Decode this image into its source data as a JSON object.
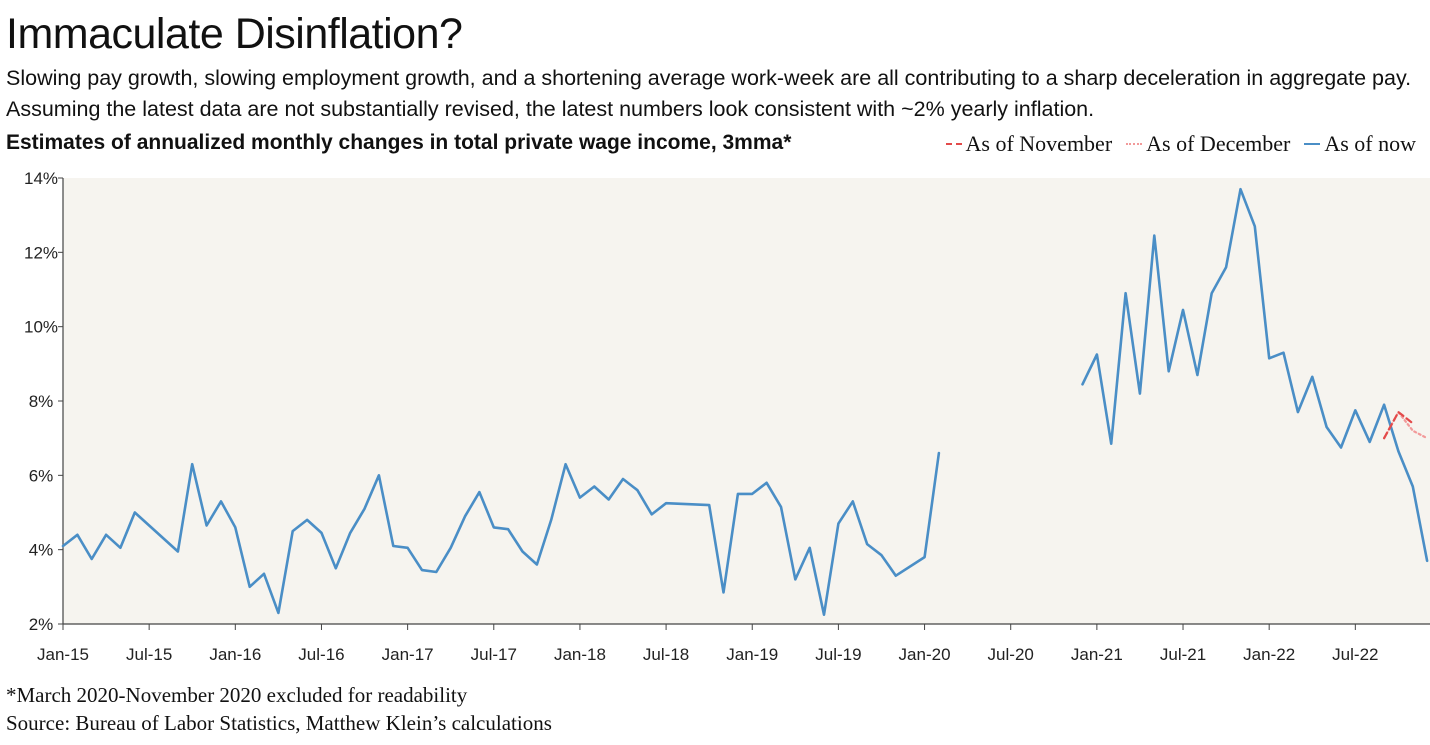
{
  "title": "Immaculate Disinflation?",
  "subtitle": "Slowing pay growth, slowing employment growth, and a shortening average work-week are all contributing to a sharp deceleration in aggregate pay. Assuming the latest data are not substantially revised, the latest numbers look consistent with ~2% yearly inflation.",
  "footnote": "*March 2020-November 2020 excluded for readability",
  "source": "Source: Bureau of Labor Statistics, Matthew Klein’s calculations",
  "chart_data": {
    "type": "line",
    "title": "Estimates of annualized monthly changes in total private wage income, 3mma*",
    "xlabel": "",
    "ylabel": "",
    "ylim": [
      2,
      14
    ],
    "xlim": [
      "Jan-15",
      "Dec-22"
    ],
    "grid": false,
    "legend_position": "top-right",
    "background": "#f6f4ef",
    "y_ticks": [
      "2%",
      "4%",
      "6%",
      "8%",
      "10%",
      "12%",
      "14%"
    ],
    "x_ticks": [
      "Jan-15",
      "Jul-15",
      "Jan-16",
      "Jul-16",
      "Jan-17",
      "Jul-17",
      "Jan-18",
      "Jul-18",
      "Jan-19",
      "Jul-19",
      "Jan-20",
      "Jul-20",
      "Jan-21",
      "Jul-21",
      "Jan-22",
      "Jul-22"
    ],
    "series": [
      {
        "name": "As of November",
        "color": "#e34a4a",
        "style": "dashed",
        "points": [
          [
            "Sep-22",
            7.0
          ],
          [
            "Oct-22",
            7.7
          ],
          [
            "Nov-22",
            7.4
          ]
        ]
      },
      {
        "name": "As of December",
        "color": "#f29a9a",
        "style": "dotted",
        "points": [
          [
            "Sep-22",
            7.0
          ],
          [
            "Oct-22",
            7.7
          ],
          [
            "Nov-22",
            7.2
          ],
          [
            "Dec-22",
            7.0
          ]
        ]
      },
      {
        "name": "As of now",
        "color": "#4a8ec6",
        "style": "solid",
        "segments": [
          [
            [
              "Jan-15",
              4.1
            ],
            [
              "Feb-15",
              4.4
            ],
            [
              "Mar-15",
              3.75
            ],
            [
              "Apr-15",
              4.4
            ],
            [
              "May-15",
              4.05
            ],
            [
              "Jun-15",
              5.0
            ],
            [
              "Sep-15",
              3.95
            ],
            [
              "Oct-15",
              6.3
            ],
            [
              "Nov-15",
              4.65
            ],
            [
              "Dec-15",
              5.3
            ],
            [
              "Jan-16",
              4.6
            ],
            [
              "Feb-16",
              3.0
            ],
            [
              "Mar-16",
              3.35
            ],
            [
              "Apr-16",
              2.3
            ],
            [
              "May-16",
              4.5
            ],
            [
              "Jun-16",
              4.8
            ],
            [
              "Jul-16",
              4.45
            ],
            [
              "Aug-16",
              3.5
            ],
            [
              "Sep-16",
              4.45
            ],
            [
              "Oct-16",
              5.1
            ],
            [
              "Nov-16",
              6.0
            ],
            [
              "Dec-16",
              4.1
            ],
            [
              "Jan-17",
              4.05
            ],
            [
              "Feb-17",
              3.45
            ],
            [
              "Mar-17",
              3.4
            ],
            [
              "Apr-17",
              4.05
            ],
            [
              "May-17",
              4.9
            ],
            [
              "Jun-17",
              5.55
            ],
            [
              "Jul-17",
              4.6
            ],
            [
              "Aug-17",
              4.55
            ],
            [
              "Sep-17",
              3.95
            ],
            [
              "Oct-17",
              3.6
            ],
            [
              "Nov-17",
              4.8
            ],
            [
              "Dec-17",
              6.3
            ],
            [
              "Jan-18",
              5.4
            ],
            [
              "Feb-18",
              5.7
            ],
            [
              "Mar-18",
              5.35
            ],
            [
              "Apr-18",
              5.9
            ],
            [
              "May-18",
              5.6
            ],
            [
              "Jun-18",
              4.95
            ],
            [
              "Jul-18",
              5.25
            ],
            [
              "Oct-18",
              5.2
            ],
            [
              "Nov-18",
              2.85
            ],
            [
              "Dec-18",
              5.5
            ],
            [
              "Jan-19",
              5.5
            ],
            [
              "Feb-19",
              5.8
            ],
            [
              "Mar-19",
              5.15
            ],
            [
              "Apr-19",
              3.2
            ],
            [
              "May-19",
              4.05
            ],
            [
              "Jun-19",
              2.25
            ],
            [
              "Jul-19",
              4.7
            ],
            [
              "Aug-19",
              5.3
            ],
            [
              "Sep-19",
              4.15
            ],
            [
              "Oct-19",
              3.85
            ],
            [
              "Nov-19",
              3.3
            ],
            [
              "Jan-20",
              3.8
            ],
            [
              "Feb-20",
              6.6
            ]
          ],
          [
            [
              "Dec-20",
              8.45
            ],
            [
              "Jan-21",
              9.25
            ],
            [
              "Feb-21",
              6.85
            ],
            [
              "Mar-21",
              10.9
            ],
            [
              "Apr-21",
              8.2
            ],
            [
              "May-21",
              12.45
            ],
            [
              "Jun-21",
              8.8
            ],
            [
              "Jul-21",
              10.45
            ],
            [
              "Aug-21",
              8.7
            ],
            [
              "Sep-21",
              10.9
            ],
            [
              "Oct-21",
              11.6
            ],
            [
              "Nov-21",
              13.7
            ],
            [
              "Dec-21",
              12.7
            ],
            [
              "Jan-22",
              9.15
            ],
            [
              "Feb-22",
              9.3
            ],
            [
              "Mar-22",
              7.7
            ],
            [
              "Apr-22",
              8.65
            ],
            [
              "May-22",
              7.3
            ],
            [
              "Jun-22",
              6.75
            ],
            [
              "Jul-22",
              7.75
            ],
            [
              "Aug-22",
              6.9
            ],
            [
              "Sep-22",
              7.9
            ],
            [
              "Oct-22",
              6.65
            ],
            [
              "Nov-22",
              5.7
            ],
            [
              "Dec-22",
              3.7
            ]
          ]
        ]
      }
    ]
  }
}
